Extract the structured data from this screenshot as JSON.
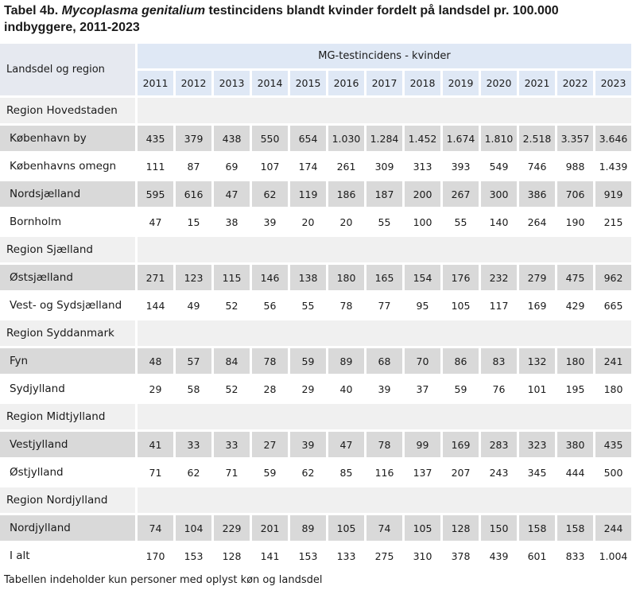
{
  "title": {
    "prefix": "Tabel 4b. ",
    "species": "Mycoplasma genitalium",
    "suffix": "  testincidens blandt kvinder fordelt på landsdel pr. 100.000",
    "line2": "indbyggere, 2011-2023"
  },
  "header": {
    "corner": "Landsdel og region",
    "group": "MG-testincidens - kvinder",
    "years": [
      "2011",
      "2012",
      "2013",
      "2014",
      "2015",
      "2016",
      "2017",
      "2018",
      "2019",
      "2020",
      "2021",
      "2022",
      "2023"
    ]
  },
  "rows": [
    {
      "type": "region",
      "label": "Region Hovedstaden"
    },
    {
      "type": "data",
      "label": "København by",
      "values": [
        "435",
        "379",
        "438",
        "550",
        "654",
        "1.030",
        "1.284",
        "1.452",
        "1.674",
        "1.810",
        "2.518",
        "3.357",
        "3.646"
      ]
    },
    {
      "type": "data",
      "label": "Københavns omegn",
      "values": [
        "111",
        "87",
        "69",
        "107",
        "174",
        "261",
        "309",
        "313",
        "393",
        "549",
        "746",
        "988",
        "1.439"
      ]
    },
    {
      "type": "data",
      "label": "Nordsjælland",
      "values": [
        "595",
        "616",
        "47",
        "62",
        "119",
        "186",
        "187",
        "200",
        "267",
        "300",
        "386",
        "706",
        "919"
      ]
    },
    {
      "type": "data",
      "label": "Bornholm",
      "values": [
        "47",
        "15",
        "38",
        "39",
        "20",
        "20",
        "55",
        "100",
        "55",
        "140",
        "264",
        "190",
        "215"
      ]
    },
    {
      "type": "region",
      "label": "Region Sjælland"
    },
    {
      "type": "data",
      "label": "Østsjælland",
      "values": [
        "271",
        "123",
        "115",
        "146",
        "138",
        "180",
        "165",
        "154",
        "176",
        "232",
        "279",
        "475",
        "962"
      ]
    },
    {
      "type": "data",
      "label": "Vest- og Sydsjælland",
      "values": [
        "144",
        "49",
        "52",
        "56",
        "55",
        "78",
        "77",
        "95",
        "105",
        "117",
        "169",
        "429",
        "665"
      ]
    },
    {
      "type": "region",
      "label": "Region Syddanmark"
    },
    {
      "type": "data",
      "label": "Fyn",
      "values": [
        "48",
        "57",
        "84",
        "78",
        "59",
        "89",
        "68",
        "70",
        "86",
        "83",
        "132",
        "180",
        "241"
      ]
    },
    {
      "type": "data",
      "label": "Sydjylland",
      "values": [
        "29",
        "58",
        "52",
        "28",
        "29",
        "40",
        "39",
        "37",
        "59",
        "76",
        "101",
        "195",
        "180"
      ]
    },
    {
      "type": "region",
      "label": "Region Midtjylland"
    },
    {
      "type": "data",
      "label": "Vestjylland",
      "values": [
        "41",
        "33",
        "33",
        "27",
        "39",
        "47",
        "78",
        "99",
        "169",
        "283",
        "323",
        "380",
        "435"
      ]
    },
    {
      "type": "data",
      "label": "Østjylland",
      "values": [
        "71",
        "62",
        "71",
        "59",
        "62",
        "85",
        "116",
        "137",
        "207",
        "243",
        "345",
        "444",
        "500"
      ]
    },
    {
      "type": "region",
      "label": "Region Nordjylland"
    },
    {
      "type": "data",
      "label": "Nordjylland",
      "values": [
        "74",
        "104",
        "229",
        "201",
        "89",
        "105",
        "74",
        "105",
        "128",
        "150",
        "158",
        "158",
        "244"
      ]
    },
    {
      "type": "data",
      "label": "I alt",
      "values": [
        "170",
        "153",
        "128",
        "141",
        "153",
        "133",
        "275",
        "310",
        "378",
        "439",
        "601",
        "833",
        "1.004"
      ]
    }
  ],
  "footnote": "Tabellen indeholder kun personer med oplyst køn og landsdel"
}
